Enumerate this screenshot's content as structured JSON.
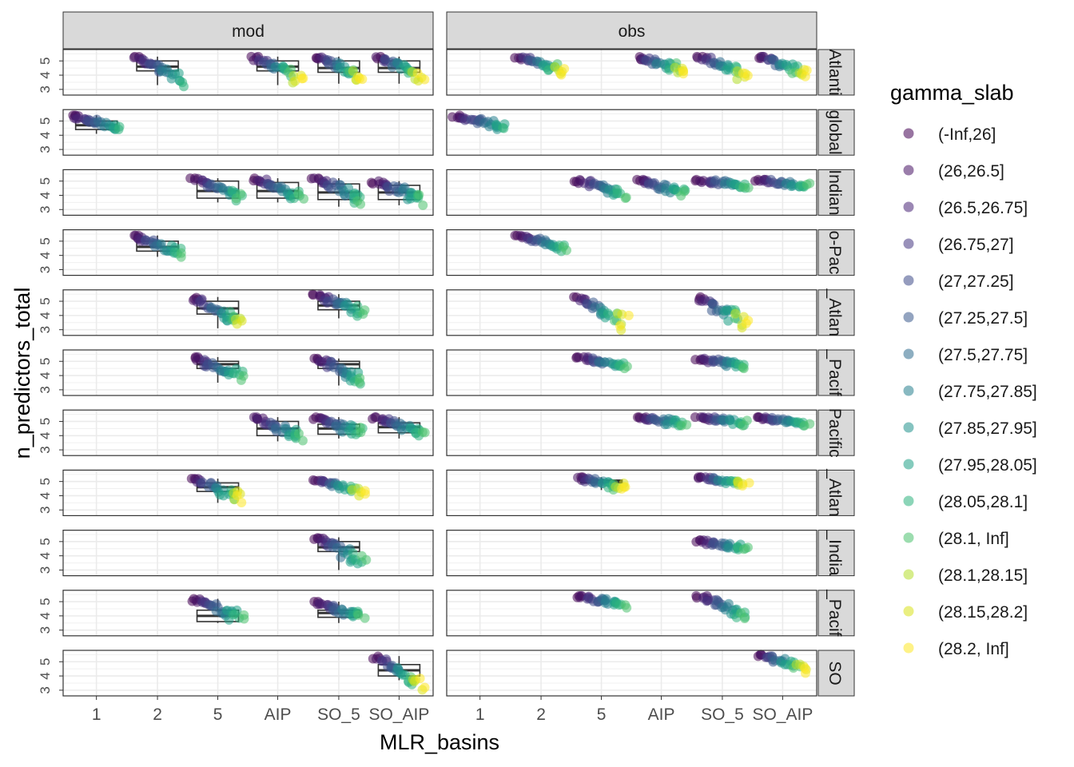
{
  "chart_data": {
    "type": "scatter",
    "subtype": "faceted jittered scatter with boxplot overlay",
    "xlabel": "MLR_basins",
    "ylabel": "n_predictors_total",
    "x_categories": [
      "1",
      "2",
      "5",
      "AIP",
      "SO_5",
      "SO_AIP"
    ],
    "y_ticks": [
      3,
      4,
      5
    ],
    "ylim": [
      2.6,
      5.8
    ],
    "grid": true,
    "legend_position": "right",
    "legend_title": "gamma_slab",
    "legend": [
      {
        "label": "(-Inf,26]",
        "color": "#440154"
      },
      {
        "label": "(26,26.5]",
        "color": "#471365"
      },
      {
        "label": "(26.5,26.75]",
        "color": "#482576"
      },
      {
        "label": "(26.75,27]",
        "color": "#453781"
      },
      {
        "label": "(27,27.25]",
        "color": "#3E4A89"
      },
      {
        "label": "(27.25,27.5]",
        "color": "#3A5A8C"
      },
      {
        "label": "(27.5,27.75]",
        "color": "#2F6B8E"
      },
      {
        "label": "(27.75,27.85]",
        "color": "#277F8E"
      },
      {
        "label": "(27.85,27.95]",
        "color": "#21918C"
      },
      {
        "label": "(27.95,28.05]",
        "color": "#1FA187"
      },
      {
        "label": "(28.05,28.1]",
        "color": "#2DB27D"
      },
      {
        "label": "(28.1, Inf]",
        "color": "#4AC16D"
      },
      {
        "label": "(28.1,28.15]",
        "color": "#B4DE2C"
      },
      {
        "label": "(28.15,28.2]",
        "color": "#D8E219"
      },
      {
        "label": "(28.2, Inf]",
        "color": "#FDE725"
      }
    ],
    "col_facets": [
      "mod",
      "obs"
    ],
    "row_facets": [
      "Atlantic",
      "global",
      "Indian",
      "Indo-Pacific",
      "N_Atlantic",
      "N_Pacific",
      "Pacific",
      "S_Atlantic",
      "S_Indian",
      "S_Pacific",
      "SO"
    ],
    "row_strip_shown": [
      "Atlanti",
      "global",
      "Indian",
      "o-Pac",
      "_Atlan",
      "_Pacif",
      "Pacific",
      "_Atlan",
      "_India",
      "_Pacif",
      "SO"
    ],
    "groups": [
      {
        "facet": [
          "mod",
          "Atlantic"
        ],
        "x": "2",
        "y_min": 3.2,
        "y_max": 5.3,
        "box": [
          3.3,
          4.3,
          4.6,
          5.0,
          5.3
        ],
        "colors": [
          0,
          10
        ]
      },
      {
        "facet": [
          "mod",
          "Atlantic"
        ],
        "x": "AIP",
        "y_min": 3.2,
        "y_max": 5.3,
        "box": [
          3.3,
          4.3,
          4.6,
          5.0,
          5.3
        ],
        "colors": [
          0,
          14
        ]
      },
      {
        "facet": [
          "mod",
          "Atlantic"
        ],
        "x": "SO_5",
        "y_min": 3.4,
        "y_max": 5.3,
        "box": [
          3.4,
          4.2,
          4.5,
          5.0,
          5.3
        ],
        "colors": [
          0,
          14
        ]
      },
      {
        "facet": [
          "mod",
          "Atlantic"
        ],
        "x": "SO_AIP",
        "y_min": 3.5,
        "y_max": 5.3,
        "box": [
          3.4,
          4.2,
          4.5,
          5.0,
          5.3
        ],
        "colors": [
          0,
          14
        ]
      },
      {
        "facet": [
          "obs",
          "Atlantic"
        ],
        "x": "2",
        "y_min": 4.0,
        "y_max": 5.3,
        "colors": [
          0,
          14
        ]
      },
      {
        "facet": [
          "obs",
          "Atlantic"
        ],
        "x": "AIP",
        "y_min": 4.0,
        "y_max": 5.3,
        "colors": [
          0,
          14
        ]
      },
      {
        "facet": [
          "obs",
          "Atlantic"
        ],
        "x": "SO_5",
        "y_min": 3.5,
        "y_max": 5.3,
        "colors": [
          0,
          14
        ]
      },
      {
        "facet": [
          "obs",
          "Atlantic"
        ],
        "x": "SO_AIP",
        "y_min": 3.9,
        "y_max": 5.3,
        "colors": [
          0,
          14
        ]
      },
      {
        "facet": [
          "mod",
          "global"
        ],
        "x": "1",
        "y_min": 4.1,
        "y_max": 5.4,
        "box": [
          4.1,
          4.4,
          4.7,
          5.0,
          5.4
        ],
        "colors": [
          0,
          10
        ]
      },
      {
        "facet": [
          "obs",
          "global"
        ],
        "x": "1",
        "y_min": 4.3,
        "y_max": 5.4,
        "colors": [
          0,
          10
        ]
      },
      {
        "facet": [
          "mod",
          "Indian"
        ],
        "x": "5",
        "y_min": 3.5,
        "y_max": 5.2,
        "box": [
          3.5,
          3.8,
          4.3,
          5.0,
          5.2
        ],
        "colors": [
          0,
          11
        ]
      },
      {
        "facet": [
          "mod",
          "Indian"
        ],
        "x": "AIP",
        "y_min": 3.5,
        "y_max": 5.2,
        "box": [
          3.5,
          3.8,
          4.3,
          4.9,
          5.2
        ],
        "colors": [
          0,
          11
        ]
      },
      {
        "facet": [
          "mod",
          "Indian"
        ],
        "x": "SO_5",
        "y_min": 3.2,
        "y_max": 5.2,
        "box": [
          3.2,
          3.7,
          4.2,
          4.8,
          5.2
        ],
        "colors": [
          0,
          11
        ]
      },
      {
        "facet": [
          "mod",
          "Indian"
        ],
        "x": "SO_AIP",
        "y_min": 3.3,
        "y_max": 5.0,
        "box": [
          3.3,
          3.7,
          4.2,
          4.7,
          5.0
        ],
        "colors": [
          0,
          11
        ]
      },
      {
        "facet": [
          "obs",
          "Indian"
        ],
        "x": "5",
        "y_min": 3.8,
        "y_max": 5.1,
        "colors": [
          0,
          11
        ]
      },
      {
        "facet": [
          "obs",
          "Indian"
        ],
        "x": "AIP",
        "y_min": 3.8,
        "y_max": 5.1,
        "colors": [
          0,
          11
        ]
      },
      {
        "facet": [
          "obs",
          "Indian"
        ],
        "x": "SO_5",
        "y_min": 4.5,
        "y_max": 5.1,
        "colors": [
          0,
          11
        ]
      },
      {
        "facet": [
          "obs",
          "Indian"
        ],
        "x": "SO_AIP",
        "y_min": 4.5,
        "y_max": 5.1,
        "colors": [
          0,
          11
        ]
      },
      {
        "facet": [
          "mod",
          "Indo-Pacific"
        ],
        "x": "2",
        "y_min": 3.8,
        "y_max": 5.4,
        "box": [
          3.9,
          4.3,
          4.6,
          5.0,
          5.4
        ],
        "colors": [
          0,
          11
        ]
      },
      {
        "facet": [
          "obs",
          "Indo-Pacific"
        ],
        "x": "2",
        "y_min": 4.2,
        "y_max": 5.4,
        "colors": [
          0,
          11
        ]
      },
      {
        "facet": [
          "mod",
          "N_Atlantic"
        ],
        "x": "5",
        "y_min": 2.7,
        "y_max": 5.3,
        "box": [
          3.1,
          4.1,
          4.5,
          5.0,
          5.3
        ],
        "colors": [
          0,
          13
        ]
      },
      {
        "facet": [
          "mod",
          "N_Atlantic"
        ],
        "x": "SO_5",
        "y_min": 3.8,
        "y_max": 5.5,
        "box": [
          3.8,
          4.4,
          4.7,
          5.0,
          5.5
        ],
        "colors": [
          0,
          11
        ]
      },
      {
        "facet": [
          "obs",
          "N_Atlantic"
        ],
        "x": "5",
        "y_min": 2.8,
        "y_max": 5.3,
        "colors": [
          0,
          14
        ]
      },
      {
        "facet": [
          "obs",
          "N_Atlantic"
        ],
        "x": "SO_5",
        "y_min": 2.8,
        "y_max": 5.3,
        "colors": [
          0,
          14
        ]
      },
      {
        "facet": [
          "mod",
          "N_Pacific"
        ],
        "x": "5",
        "y_min": 3.5,
        "y_max": 5.3,
        "box": [
          3.5,
          4.5,
          4.8,
          5.0,
          5.3
        ],
        "colors": [
          0,
          11
        ]
      },
      {
        "facet": [
          "mod",
          "N_Pacific"
        ],
        "x": "SO_5",
        "y_min": 3.3,
        "y_max": 5.2,
        "box": [
          3.3,
          4.5,
          4.8,
          5.0,
          5.2
        ],
        "colors": [
          0,
          11
        ]
      },
      {
        "facet": [
          "obs",
          "N_Pacific"
        ],
        "x": "5",
        "y_min": 4.5,
        "y_max": 5.3,
        "colors": [
          0,
          11
        ]
      },
      {
        "facet": [
          "obs",
          "N_Pacific"
        ],
        "x": "SO_5",
        "y_min": 4.5,
        "y_max": 5.2,
        "colors": [
          0,
          11
        ]
      },
      {
        "facet": [
          "mod",
          "Pacific"
        ],
        "x": "AIP",
        "y_min": 3.5,
        "y_max": 5.3,
        "box": [
          3.6,
          4.0,
          4.5,
          5.0,
          5.3
        ],
        "colors": [
          0,
          11
        ]
      },
      {
        "facet": [
          "mod",
          "Pacific"
        ],
        "x": "SO_5",
        "y_min": 3.8,
        "y_max": 5.3,
        "box": [
          3.8,
          4.1,
          4.5,
          4.8,
          5.3
        ],
        "colors": [
          0,
          11
        ]
      },
      {
        "facet": [
          "mod",
          "Pacific"
        ],
        "x": "SO_AIP",
        "y_min": 3.8,
        "y_max": 5.3,
        "box": [
          3.8,
          4.2,
          4.6,
          4.9,
          5.3
        ],
        "colors": [
          0,
          11
        ]
      },
      {
        "facet": [
          "obs",
          "Pacific"
        ],
        "x": "AIP",
        "y_min": 4.7,
        "y_max": 5.3,
        "colors": [
          0,
          11
        ]
      },
      {
        "facet": [
          "obs",
          "Pacific"
        ],
        "x": "SO_5",
        "y_min": 4.7,
        "y_max": 5.3,
        "colors": [
          0,
          11
        ]
      },
      {
        "facet": [
          "obs",
          "Pacific"
        ],
        "x": "SO_AIP",
        "y_min": 4.7,
        "y_max": 5.3,
        "colors": [
          0,
          11
        ]
      },
      {
        "facet": [
          "mod",
          "S_Atlantic"
        ],
        "x": "5",
        "y_min": 3.3,
        "y_max": 5.2,
        "box": [
          3.5,
          4.3,
          4.6,
          4.9,
          5.2
        ],
        "colors": [
          0,
          14
        ]
      },
      {
        "facet": [
          "mod",
          "S_Atlantic"
        ],
        "x": "SO_5",
        "y_min": 4.0,
        "y_max": 5.1,
        "colors": [
          0,
          14
        ]
      },
      {
        "facet": [
          "obs",
          "S_Atlantic"
        ],
        "x": "5",
        "y_min": 4.3,
        "y_max": 5.3,
        "box": [
          4.4,
          4.9,
          5.0,
          5.1,
          5.3
        ],
        "colors": [
          0,
          14
        ]
      },
      {
        "facet": [
          "obs",
          "S_Atlantic"
        ],
        "x": "SO_5",
        "y_min": 4.7,
        "y_max": 5.3,
        "colors": [
          0,
          14
        ]
      },
      {
        "facet": [
          "mod",
          "S_Indian"
        ],
        "x": "SO_5",
        "y_min": 2.9,
        "y_max": 5.3,
        "box": [
          3.0,
          4.3,
          4.6,
          5.0,
          5.3
        ],
        "colors": [
          0,
          11
        ]
      },
      {
        "facet": [
          "obs",
          "S_Indian"
        ],
        "x": "SO_5",
        "y_min": 4.3,
        "y_max": 5.1,
        "colors": [
          0,
          11
        ]
      },
      {
        "facet": [
          "mod",
          "S_Pacific"
        ],
        "x": "5",
        "y_min": 3.4,
        "y_max": 5.2,
        "box": [
          3.5,
          3.6,
          4.0,
          4.4,
          5.2
        ],
        "colors": [
          0,
          11
        ]
      },
      {
        "facet": [
          "mod",
          "S_Pacific"
        ],
        "x": "SO_5",
        "y_min": 3.5,
        "y_max": 5.0,
        "box": [
          3.5,
          3.9,
          4.2,
          4.4,
          5.0
        ],
        "colors": [
          0,
          11
        ]
      },
      {
        "facet": [
          "obs",
          "S_Pacific"
        ],
        "x": "5",
        "y_min": 4.5,
        "y_max": 5.4,
        "colors": [
          0,
          11
        ]
      },
      {
        "facet": [
          "obs",
          "S_Pacific"
        ],
        "x": "SO_5",
        "y_min": 3.7,
        "y_max": 5.4,
        "colors": [
          0,
          11
        ]
      },
      {
        "facet": [
          "mod",
          "SO"
        ],
        "x": "SO_AIP",
        "y_min": 2.7,
        "y_max": 5.4,
        "box": [
          3.7,
          4.0,
          4.4,
          4.8,
          5.4
        ],
        "colors": [
          0,
          14
        ]
      },
      {
        "facet": [
          "obs",
          "SO"
        ],
        "x": "SO_AIP",
        "y_min": 4.2,
        "y_max": 5.5,
        "colors": [
          0,
          14
        ]
      }
    ]
  }
}
